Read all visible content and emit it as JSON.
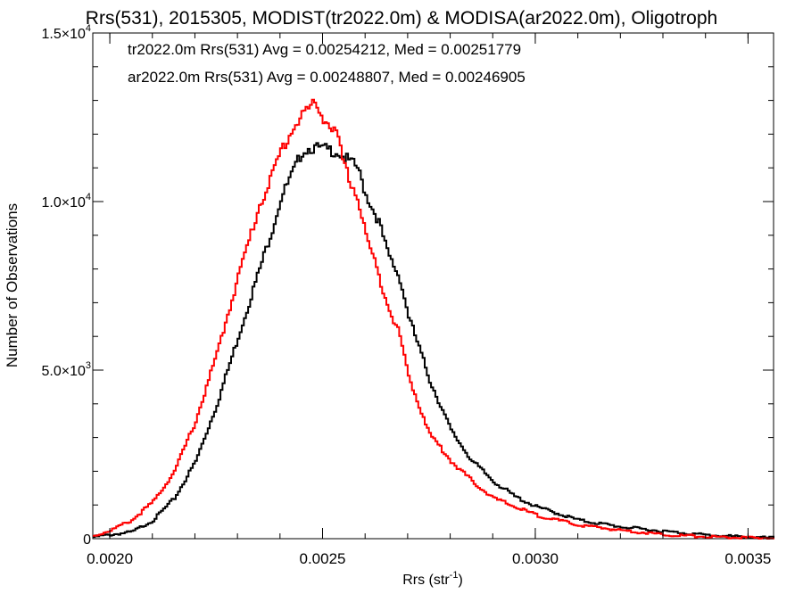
{
  "chart_data": {
    "type": "line",
    "title": "Rrs(531), 2015305, MODIST(tr2022.0m) & MODISA(ar2022.0m), Oligotroph",
    "xlabel": "Rrs (str",
    "xlabel_sup": "-1",
    "xlabel_close": ")",
    "ylabel": "Number of Observations",
    "xlim": [
      0.00196,
      0.00356
    ],
    "ylim": [
      0,
      15000
    ],
    "x_ticks": [
      {
        "value": 0.002,
        "label": "0.0020"
      },
      {
        "value": 0.0025,
        "label": "0.0025"
      },
      {
        "value": 0.003,
        "label": "0.0030"
      },
      {
        "value": 0.0035,
        "label": "0.0035"
      }
    ],
    "y_ticks": [
      {
        "value": 0,
        "mant": "0",
        "exp": ""
      },
      {
        "value": 5000,
        "mant": "5.0×10",
        "exp": "3"
      },
      {
        "value": 10000,
        "mant": "1.0×10",
        "exp": "4"
      },
      {
        "value": 15000,
        "mant": "1.5×10",
        "exp": "4"
      }
    ],
    "grid": false,
    "legend_position": "top-left",
    "series": [
      {
        "name": "tr2022.0m Rrs(531) Avg = 0.00254212, Med = 0.00251779",
        "color": "#000000",
        "x": [
          0.00196,
          0.00205,
          0.0021,
          0.00215,
          0.0022,
          0.00225,
          0.0023,
          0.00235,
          0.00238,
          0.0024,
          0.00243,
          0.00245,
          0.00247,
          0.0025,
          0.00253,
          0.00255,
          0.00258,
          0.0026,
          0.00263,
          0.00265,
          0.00268,
          0.0027,
          0.00275,
          0.0028,
          0.00285,
          0.0029,
          0.00295,
          0.003,
          0.0031,
          0.0032,
          0.0033,
          0.0034,
          0.0035,
          0.00356
        ],
        "y": [
          50,
          200,
          550,
          1200,
          2300,
          4000,
          6000,
          8000,
          9200,
          10100,
          10900,
          11500,
          11600,
          11550,
          11500,
          11300,
          11000,
          10200,
          9400,
          8500,
          7700,
          6600,
          4700,
          3200,
          2300,
          1700,
          1250,
          950,
          550,
          350,
          220,
          110,
          40,
          20
        ]
      },
      {
        "name": "ar2022.0m Rrs(531) Avg = 0.00248807, Med = 0.00246905",
        "color": "#ff0000",
        "x": [
          0.00196,
          0.002,
          0.00205,
          0.0021,
          0.00215,
          0.0022,
          0.00225,
          0.0023,
          0.00235,
          0.00238,
          0.0024,
          0.00243,
          0.00245,
          0.00247,
          0.00248,
          0.0025,
          0.00253,
          0.00255,
          0.00258,
          0.0026,
          0.00263,
          0.00265,
          0.00268,
          0.0027,
          0.00275,
          0.0028,
          0.00285,
          0.0029,
          0.003,
          0.0031,
          0.0032,
          0.0033,
          0.0034,
          0.0035,
          0.00356
        ],
        "y": [
          80,
          250,
          550,
          1100,
          2000,
          3500,
          5500,
          7800,
          9900,
          10800,
          11500,
          12200,
          12600,
          12800,
          12900,
          12500,
          12000,
          11000,
          10100,
          9000,
          7800,
          7000,
          6000,
          4800,
          3100,
          2300,
          1700,
          1200,
          700,
          400,
          250,
          120,
          60,
          25,
          10
        ]
      }
    ]
  }
}
